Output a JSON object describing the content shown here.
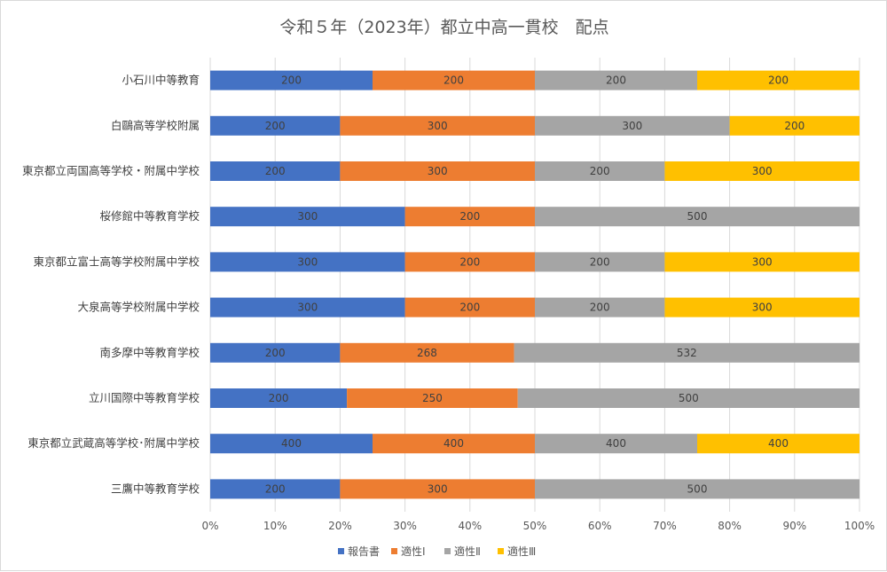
{
  "chart_data": {
    "type": "bar",
    "orientation": "horizontal",
    "stacked": "percent",
    "title": "令和５年（2023年）都立中高一貫校　配点",
    "categories": [
      "小石川中等教育",
      "白鷗高等学校附属",
      "東京都立両国高等学校・附属中学校",
      "桜修館中等教育学校",
      "東京都立富士高等学校附属中学校",
      "大泉高等学校附属中学校",
      "南多摩中等教育学校",
      "立川国際中等教育学校",
      "東京都立武蔵高等学校･附属中学校",
      "三鷹中等教育学校"
    ],
    "series": [
      {
        "name": "報告書",
        "color": "#4472C4",
        "values": [
          200,
          200,
          200,
          300,
          300,
          300,
          200,
          200,
          400,
          200
        ]
      },
      {
        "name": "適性Ⅰ",
        "color": "#ED7D31",
        "values": [
          200,
          300,
          300,
          200,
          200,
          200,
          268,
          250,
          400,
          300
        ]
      },
      {
        "name": "適性Ⅱ",
        "color": "#A5A5A5",
        "values": [
          200,
          300,
          200,
          500,
          200,
          200,
          532,
          500,
          400,
          500
        ]
      },
      {
        "name": "適性Ⅲ",
        "color": "#FFC000",
        "values": [
          200,
          200,
          300,
          0,
          300,
          300,
          0,
          0,
          400,
          0
        ]
      }
    ],
    "xticks": [
      "0%",
      "10%",
      "20%",
      "30%",
      "40%",
      "50%",
      "60%",
      "70%",
      "80%",
      "90%",
      "100%"
    ],
    "xlim": [
      0,
      100
    ],
    "grid": "vertical",
    "legend_position": "bottom",
    "data_labels": true
  }
}
